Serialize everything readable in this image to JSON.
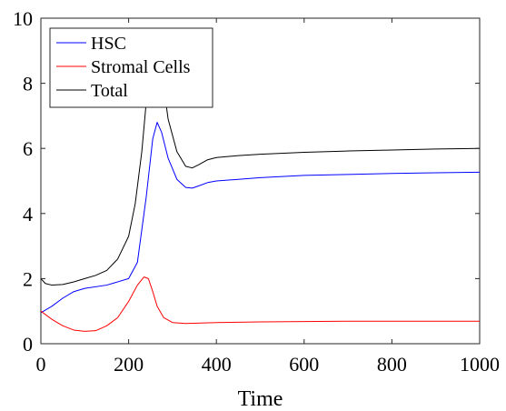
{
  "chart_data": {
    "type": "line",
    "title": "",
    "xlabel": "Time",
    "ylabel": "",
    "xlim": [
      0,
      1000
    ],
    "ylim": [
      0,
      10
    ],
    "xticks": [
      0,
      200,
      400,
      600,
      800,
      1000
    ],
    "yticks": [
      0,
      2,
      4,
      6,
      8,
      10
    ],
    "grid": false,
    "legend_position": "top-left",
    "series": [
      {
        "name": "HSC",
        "color": "#0000ff",
        "x": [
          0,
          25,
          50,
          75,
          100,
          150,
          200,
          220,
          240,
          255,
          265,
          275,
          290,
          310,
          330,
          345,
          360,
          380,
          400,
          450,
          500,
          600,
          700,
          800,
          900,
          1000
        ],
        "y": [
          0.95,
          1.15,
          1.4,
          1.6,
          1.7,
          1.8,
          2.0,
          2.5,
          4.5,
          6.3,
          6.8,
          6.5,
          5.7,
          5.05,
          4.8,
          4.78,
          4.85,
          4.95,
          5.0,
          5.05,
          5.1,
          5.17,
          5.2,
          5.23,
          5.25,
          5.27
        ]
      },
      {
        "name": "Stromal Cells",
        "color": "#ff0000",
        "x": [
          0,
          25,
          50,
          75,
          100,
          125,
          150,
          175,
          200,
          220,
          235,
          245,
          255,
          265,
          280,
          300,
          330,
          400,
          500,
          600,
          700,
          800,
          900,
          1000
        ],
        "y": [
          1.0,
          0.75,
          0.55,
          0.42,
          0.38,
          0.4,
          0.55,
          0.8,
          1.3,
          1.8,
          2.05,
          2.0,
          1.6,
          1.15,
          0.8,
          0.65,
          0.62,
          0.65,
          0.67,
          0.68,
          0.69,
          0.69,
          0.69,
          0.69
        ]
      },
      {
        "name": "Total",
        "color": "#000000",
        "x": [
          0,
          10,
          25,
          50,
          75,
          100,
          125,
          150,
          175,
          200,
          215,
          230,
          242,
          252,
          260,
          268,
          276,
          290,
          310,
          330,
          345,
          360,
          380,
          400,
          450,
          500,
          600,
          700,
          800,
          900,
          1000
        ],
        "y": [
          2.0,
          1.85,
          1.8,
          1.82,
          1.9,
          2.0,
          2.1,
          2.25,
          2.6,
          3.3,
          4.3,
          5.9,
          7.7,
          8.9,
          9.3,
          9.2,
          8.3,
          6.9,
          5.9,
          5.45,
          5.4,
          5.5,
          5.65,
          5.72,
          5.78,
          5.82,
          5.88,
          5.92,
          5.95,
          5.98,
          6.0
        ]
      }
    ]
  }
}
